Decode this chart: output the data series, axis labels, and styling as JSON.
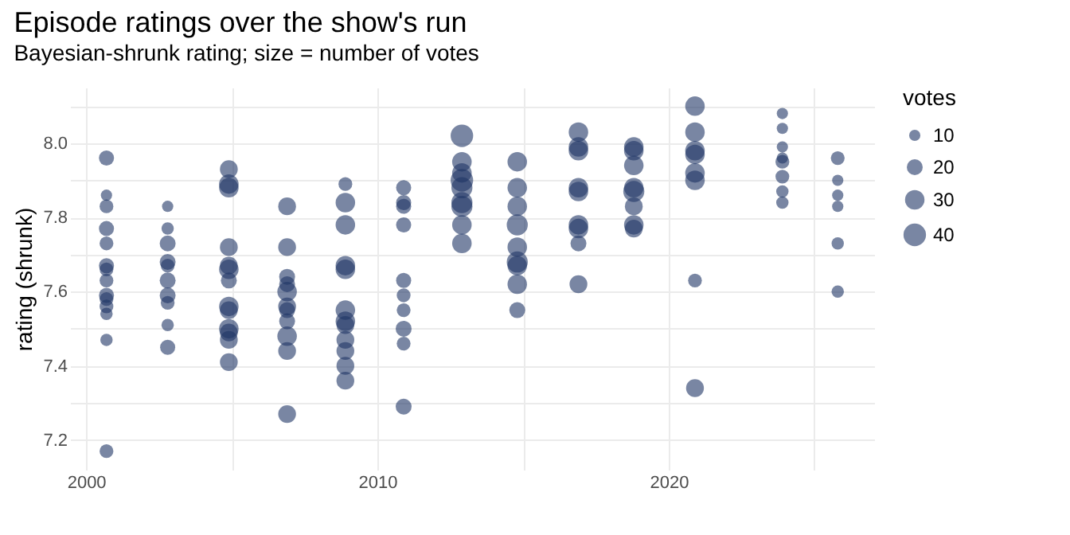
{
  "chart_data": {
    "type": "bubble",
    "title": "Episode ratings over the show's run",
    "subtitle": "Bayesian-shrunk rating; size = number of votes",
    "ylabel": "rating (shrunk)",
    "legend_title": "votes",
    "grid": true,
    "marker": "circle",
    "xlim": [
      1999.45,
      2027.05
    ],
    "ylim": [
      7.12,
      8.15
    ],
    "xticks": [
      2000,
      {
        "value": 2005,
        "label": null
      },
      2010,
      {
        "value": 2015,
        "label": null
      },
      2020,
      {
        "value": 2025,
        "label": null
      }
    ],
    "yticks": [
      7.2,
      {
        "value": 7.3,
        "label": null
      },
      7.4,
      {
        "value": 7.5,
        "label": null
      },
      7.6,
      {
        "value": 7.7,
        "label": null
      },
      7.8,
      {
        "value": 7.9,
        "label": null
      },
      {
        "value": 8,
        "label": "8.0"
      },
      {
        "value": 8.1,
        "label": null
      }
    ],
    "size_legend": [
      10,
      20,
      30,
      40
    ],
    "series": [
      {
        "color": "#1f3565",
        "x": [
          2000.7,
          2000.7,
          2000.7,
          2000.7,
          2000.7,
          2000.7,
          2000.7,
          2000.7,
          2000.7,
          2000.7,
          2000.7,
          2000.7,
          2000.7,
          2000.7,
          2002.8,
          2002.8,
          2002.8,
          2002.8,
          2002.8,
          2002.8,
          2002.8,
          2002.8,
          2002.8,
          2002.8,
          2004.9,
          2004.9,
          2004.9,
          2004.9,
          2004.9,
          2004.9,
          2004.9,
          2004.9,
          2004.9,
          2004.9,
          2004.9,
          2004.9,
          2004.9,
          2006.9,
          2006.9,
          2006.9,
          2006.9,
          2006.9,
          2006.9,
          2006.9,
          2006.9,
          2006.9,
          2006.9,
          2006.9,
          2008.9,
          2008.9,
          2008.9,
          2008.9,
          2008.9,
          2008.9,
          2008.9,
          2008.9,
          2008.9,
          2008.9,
          2008.9,
          2008.9,
          2010.9,
          2010.9,
          2010.9,
          2010.9,
          2010.9,
          2010.9,
          2010.9,
          2010.9,
          2010.9,
          2010.9,
          2012.9,
          2012.9,
          2012.9,
          2012.9,
          2012.9,
          2012.9,
          2012.9,
          2012.9,
          2012.9,
          2014.8,
          2014.8,
          2014.8,
          2014.8,
          2014.8,
          2014.8,
          2014.8,
          2014.8,
          2014.8,
          2016.9,
          2016.9,
          2016.9,
          2016.9,
          2016.9,
          2016.9,
          2016.9,
          2016.9,
          2016.9,
          2018.8,
          2018.8,
          2018.8,
          2018.8,
          2018.8,
          2018.8,
          2018.8,
          2018.8,
          2020.9,
          2020.9,
          2020.9,
          2020.9,
          2020.9,
          2020.9,
          2020.9,
          2020.9,
          2023.9,
          2023.9,
          2023.9,
          2023.9,
          2023.9,
          2023.9,
          2023.9,
          2023.9,
          2025.8,
          2025.8,
          2025.8,
          2025.8,
          2025.8,
          2025.8
        ],
        "values": [
          7.96,
          7.86,
          7.83,
          7.77,
          7.73,
          7.67,
          7.66,
          7.63,
          7.59,
          7.58,
          7.56,
          7.54,
          7.47,
          7.17,
          7.83,
          7.77,
          7.73,
          7.68,
          7.67,
          7.63,
          7.59,
          7.57,
          7.51,
          7.45,
          7.93,
          7.89,
          7.88,
          7.72,
          7.67,
          7.66,
          7.63,
          7.56,
          7.55,
          7.5,
          7.49,
          7.47,
          7.41,
          7.83,
          7.72,
          7.64,
          7.62,
          7.6,
          7.56,
          7.55,
          7.52,
          7.48,
          7.44,
          7.27,
          7.89,
          7.84,
          7.78,
          7.67,
          7.66,
          7.55,
          7.51,
          7.52,
          7.47,
          7.44,
          7.4,
          7.36,
          7.88,
          7.84,
          7.83,
          7.78,
          7.63,
          7.59,
          7.55,
          7.5,
          7.46,
          7.29,
          8.02,
          7.95,
          7.92,
          7.9,
          7.88,
          7.84,
          7.83,
          7.78,
          7.73,
          7.95,
          7.88,
          7.83,
          7.78,
          7.72,
          7.68,
          7.67,
          7.62,
          7.55,
          8.03,
          7.99,
          7.98,
          7.88,
          7.87,
          7.78,
          7.77,
          7.73,
          7.62,
          7.99,
          7.98,
          7.94,
          7.88,
          7.87,
          7.83,
          7.78,
          7.77,
          8.1,
          8.03,
          7.98,
          7.97,
          7.92,
          7.9,
          7.63,
          7.34,
          8.08,
          8.04,
          7.99,
          7.96,
          7.95,
          7.91,
          7.87,
          7.84,
          7.96,
          7.9,
          7.86,
          7.83,
          7.73,
          7.6
        ],
        "sizes": [
          18,
          10,
          15,
          18,
          15,
          18,
          15,
          15,
          18,
          15,
          15,
          12,
          12,
          15,
          10,
          12,
          20,
          20,
          15,
          20,
          20,
          15,
          12,
          18,
          25,
          30,
          30,
          25,
          25,
          30,
          20,
          30,
          25,
          30,
          25,
          25,
          25,
          25,
          25,
          20,
          20,
          30,
          25,
          20,
          20,
          30,
          25,
          25,
          15,
          30,
          30,
          30,
          30,
          30,
          25,
          30,
          25,
          25,
          25,
          25,
          18,
          18,
          18,
          18,
          18,
          15,
          15,
          20,
          15,
          20,
          40,
          30,
          30,
          40,
          35,
          35,
          35,
          30,
          30,
          30,
          30,
          30,
          35,
          30,
          35,
          30,
          30,
          20,
          30,
          30,
          30,
          30,
          30,
          30,
          30,
          20,
          25,
          30,
          30,
          30,
          30,
          35,
          25,
          30,
          25,
          30,
          30,
          30,
          30,
          30,
          30,
          15,
          25,
          10,
          10,
          10,
          10,
          15,
          15,
          12,
          12,
          15,
          10,
          10,
          10,
          12,
          12
        ]
      }
    ]
  }
}
